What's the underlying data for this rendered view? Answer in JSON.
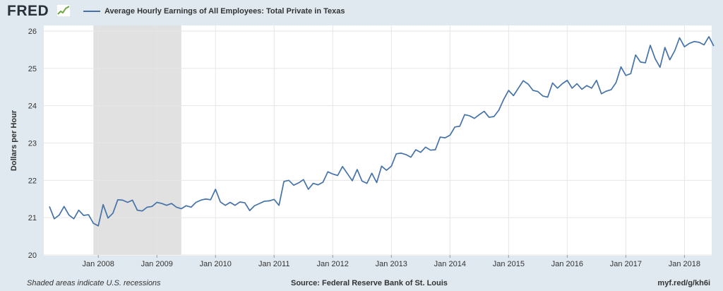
{
  "header": {
    "logo_text": "FRED",
    "logo_icon": "fred-line-graph-icon",
    "series_title": "Average Hourly Earnings of All Employees: Total Private in Texas"
  },
  "footer": {
    "recession_note": "Shaded areas indicate U.S. recessions",
    "source": "Source: Federal Reserve Bank of St. Louis",
    "short_link": "myf.red/g/kh6i"
  },
  "colors": {
    "background": "#e1e9f0",
    "plot_area": "#ffffff",
    "gridline": "#e6e6e6",
    "line": "#4572a7",
    "recession": "#e1e1e1"
  },
  "chart_data": {
    "type": "line",
    "title": "Average Hourly Earnings of All Employees: Total Private in Texas",
    "xlabel": "",
    "ylabel": "Dollars per Hour",
    "ylim": [
      20,
      26
    ],
    "yticks": [
      20,
      21,
      22,
      23,
      24,
      25,
      26
    ],
    "grid": true,
    "legend": "top-left",
    "x_start": "2007-03",
    "x_frequency": "monthly",
    "xlim": [
      "2007-03",
      "2018-06"
    ],
    "xticks": [
      {
        "label": "Jan 2008",
        "date": "2008-01"
      },
      {
        "label": "Jan 2009",
        "date": "2009-01"
      },
      {
        "label": "Jan 2010",
        "date": "2010-01"
      },
      {
        "label": "Jan 2011",
        "date": "2011-01"
      },
      {
        "label": "Jan 2012",
        "date": "2012-01"
      },
      {
        "label": "Jan 2013",
        "date": "2013-01"
      },
      {
        "label": "Jan 2014",
        "date": "2014-01"
      },
      {
        "label": "Jan 2015",
        "date": "2015-01"
      },
      {
        "label": "Jan 2016",
        "date": "2016-01"
      },
      {
        "label": "Jan 2017",
        "date": "2017-01"
      },
      {
        "label": "Jan 2018",
        "date": "2018-01"
      }
    ],
    "recessions": [
      {
        "start": "2007-12",
        "end": "2009-06"
      }
    ],
    "series": [
      {
        "values": [
          21.3,
          20.97,
          21.07,
          21.3,
          21.07,
          20.97,
          21.2,
          21.06,
          21.08,
          20.85,
          20.78,
          21.35,
          20.99,
          21.12,
          21.48,
          21.47,
          21.41,
          21.47,
          21.2,
          21.18,
          21.28,
          21.3,
          21.41,
          21.38,
          21.33,
          21.38,
          21.28,
          21.24,
          21.32,
          21.28,
          21.41,
          21.47,
          21.5,
          21.48,
          21.76,
          21.42,
          21.33,
          21.41,
          21.33,
          21.42,
          21.4,
          21.19,
          21.32,
          21.38,
          21.44,
          21.45,
          21.49,
          21.33,
          21.97,
          22.0,
          21.87,
          21.93,
          22.02,
          21.76,
          21.92,
          21.88,
          21.95,
          22.23,
          22.17,
          22.13,
          22.37,
          22.18,
          21.99,
          22.29,
          21.98,
          21.92,
          22.19,
          21.94,
          22.38,
          22.27,
          22.38,
          22.71,
          22.73,
          22.69,
          22.62,
          22.82,
          22.75,
          22.89,
          22.81,
          22.82,
          23.16,
          23.14,
          23.21,
          23.43,
          23.45,
          23.76,
          23.73,
          23.66,
          23.76,
          23.85,
          23.69,
          23.71,
          23.88,
          24.17,
          24.41,
          24.27,
          24.47,
          24.67,
          24.58,
          24.41,
          24.38,
          24.26,
          24.23,
          24.61,
          24.47,
          24.59,
          24.68,
          24.47,
          24.59,
          24.44,
          24.54,
          24.47,
          24.68,
          24.32,
          24.39,
          24.43,
          24.62,
          25.04,
          24.81,
          24.86,
          25.36,
          25.17,
          25.15,
          25.62,
          25.26,
          25.03,
          25.56,
          25.23,
          25.47,
          25.82,
          25.58,
          25.67,
          25.72,
          25.7,
          25.63,
          25.85,
          25.6
        ]
      }
    ]
  }
}
